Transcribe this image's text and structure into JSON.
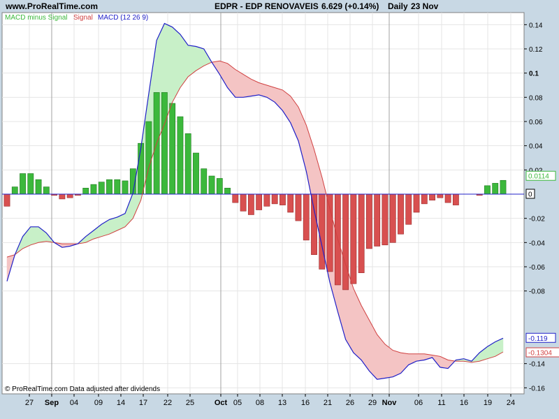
{
  "header": {
    "site": "www.ProRealTime.com",
    "symbol": "EDPR - EDP RENOVAVEIS",
    "price": "6.629 (+0.14%)",
    "period": "Daily",
    "date": "23 Nov"
  },
  "legend": {
    "hist": "MACD minus Signal",
    "signal": "Signal",
    "macd": "MACD (12 26 9)"
  },
  "footer": "© ProRealTime.com  Data adjusted after dividends",
  "colors": {
    "background": "#c8d8e4",
    "plot": "#ffffff",
    "grid": "#e4e4e4",
    "separator": "#a0a0a0",
    "hist_pos": "#3cb83c",
    "hist_neg": "#d85050",
    "macd": "#2020c8",
    "signal": "#d04040",
    "fill_up": "#c8f0c8",
    "fill_down": "#f4c4c4"
  },
  "chart_data": {
    "type": "bar",
    "x_ticks": [
      "27",
      "Sep",
      "04",
      "09",
      "14",
      "17",
      "22",
      "25",
      "Oct",
      "05",
      "08",
      "13",
      "16",
      "21",
      "26",
      "29",
      "Nov",
      "06",
      "11",
      "16",
      "19",
      "24"
    ],
    "ylim": [
      -0.165,
      0.15
    ],
    "y_ticks": [
      {
        "v": 0.14,
        "t": "0.14"
      },
      {
        "v": 0.12,
        "t": "0.12"
      },
      {
        "v": 0.1,
        "t": "0.1"
      },
      {
        "v": 0.08,
        "t": "0.08"
      },
      {
        "v": 0.06,
        "t": "0.06"
      },
      {
        "v": 0.04,
        "t": "0.04"
      },
      {
        "v": 0.02,
        "t": "0.02"
      },
      {
        "v": -0.02,
        "t": "-0.02"
      },
      {
        "v": -0.04,
        "t": "-0.04"
      },
      {
        "v": -0.06,
        "t": "-0.06"
      },
      {
        "v": -0.08,
        "t": "-0.08"
      },
      {
        "v": -0.14,
        "t": "-0.14"
      },
      {
        "v": -0.16,
        "t": "-0.16"
      }
    ],
    "last_values": [
      {
        "v": 0.0114,
        "t": "0.0114",
        "series": "hist"
      },
      {
        "v": 0,
        "t": "0",
        "series": "zero"
      },
      {
        "v": -0.119,
        "t": "-0.119",
        "series": "macd"
      },
      {
        "v": -0.1304,
        "t": "-0.1304",
        "series": "signal"
      }
    ],
    "series": [
      {
        "name": "MACD minus Signal",
        "kind": "histogram",
        "values": [
          -0.01,
          0.006,
          0.017,
          0.017,
          0.012,
          0.006,
          -0.001,
          -0.004,
          -0.003,
          -0.001,
          0.005,
          0.008,
          0.01,
          0.012,
          0.012,
          0.011,
          0.021,
          0.042,
          0.06,
          0.084,
          0.084,
          0.075,
          0.064,
          0.05,
          0.034,
          0.021,
          0.015,
          0.013,
          0.005,
          -0.007,
          -0.014,
          -0.017,
          -0.013,
          -0.01,
          -0.008,
          -0.009,
          -0.015,
          -0.022,
          -0.038,
          -0.05,
          -0.062,
          -0.064,
          -0.075,
          -0.079,
          -0.074,
          -0.065,
          -0.045,
          -0.043,
          -0.042,
          -0.04,
          -0.033,
          -0.025,
          -0.015,
          -0.008,
          -0.005,
          -0.003,
          -0.007,
          -0.009,
          0,
          0,
          -0.001,
          0.007,
          0.009,
          0.0114
        ]
      },
      {
        "name": "Signal",
        "kind": "line",
        "values": [
          -0.052,
          -0.05,
          -0.045,
          -0.042,
          -0.04,
          -0.039,
          -0.04,
          -0.041,
          -0.041,
          -0.041,
          -0.04,
          -0.037,
          -0.035,
          -0.033,
          -0.03,
          -0.027,
          -0.02,
          -0.005,
          0.022,
          0.042,
          0.058,
          0.076,
          0.088,
          0.097,
          0.102,
          0.106,
          0.109,
          0.11,
          0.108,
          0.103,
          0.099,
          0.095,
          0.092,
          0.09,
          0.088,
          0.086,
          0.081,
          0.072,
          0.057,
          0.037,
          0.014,
          -0.012,
          -0.037,
          -0.058,
          -0.078,
          -0.092,
          -0.104,
          -0.116,
          -0.124,
          -0.129,
          -0.131,
          -0.132,
          -0.132,
          -0.132,
          -0.133,
          -0.134,
          -0.137,
          -0.138,
          -0.138,
          -0.139,
          -0.138,
          -0.136,
          -0.134,
          -0.1304
        ]
      },
      {
        "name": "MACD (12 26 9)",
        "kind": "line",
        "values": [
          -0.072,
          -0.05,
          -0.035,
          -0.027,
          -0.027,
          -0.032,
          -0.04,
          -0.044,
          -0.043,
          -0.041,
          -0.035,
          -0.03,
          -0.025,
          -0.021,
          -0.019,
          -0.016,
          0.001,
          0.038,
          0.083,
          0.127,
          0.141,
          0.138,
          0.132,
          0.123,
          0.122,
          0.12,
          0.109,
          0.099,
          0.088,
          0.08,
          0.08,
          0.081,
          0.082,
          0.08,
          0.076,
          0.069,
          0.059,
          0.044,
          0.019,
          -0.013,
          -0.043,
          -0.073,
          -0.097,
          -0.12,
          -0.131,
          -0.137,
          -0.146,
          -0.153,
          -0.152,
          -0.151,
          -0.148,
          -0.141,
          -0.138,
          -0.137,
          -0.135,
          -0.143,
          -0.144,
          -0.137,
          -0.136,
          -0.138,
          -0.131,
          -0.126,
          -0.122,
          -0.119
        ]
      }
    ]
  }
}
